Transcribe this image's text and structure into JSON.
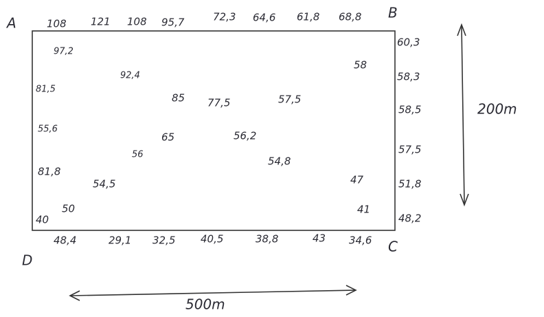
{
  "corners": {
    "a": "A",
    "b": "B",
    "c": "C",
    "d": "D"
  },
  "top_edge": [
    "108",
    "121",
    "108",
    "95,7",
    "72,3",
    "64,6",
    "61,8",
    "68,8"
  ],
  "right_edge": [
    "60,3",
    "58,3",
    "58,5",
    "57,5",
    "51,8",
    "48,2"
  ],
  "bottom_edge": [
    "48,4",
    "29,1",
    "32,5",
    "40,5",
    "38,8",
    "43",
    "34,6"
  ],
  "left_edge": [
    "81,5",
    "55,6",
    "81,8",
    "40"
  ],
  "interior": [
    "97,2",
    "92,4",
    "85",
    "77,5",
    "57,5",
    "58",
    "65",
    "56,2",
    "54,8",
    "54,5",
    "56",
    "50",
    "47",
    "41"
  ],
  "dimensions": {
    "height": "200m",
    "width": "500m"
  }
}
